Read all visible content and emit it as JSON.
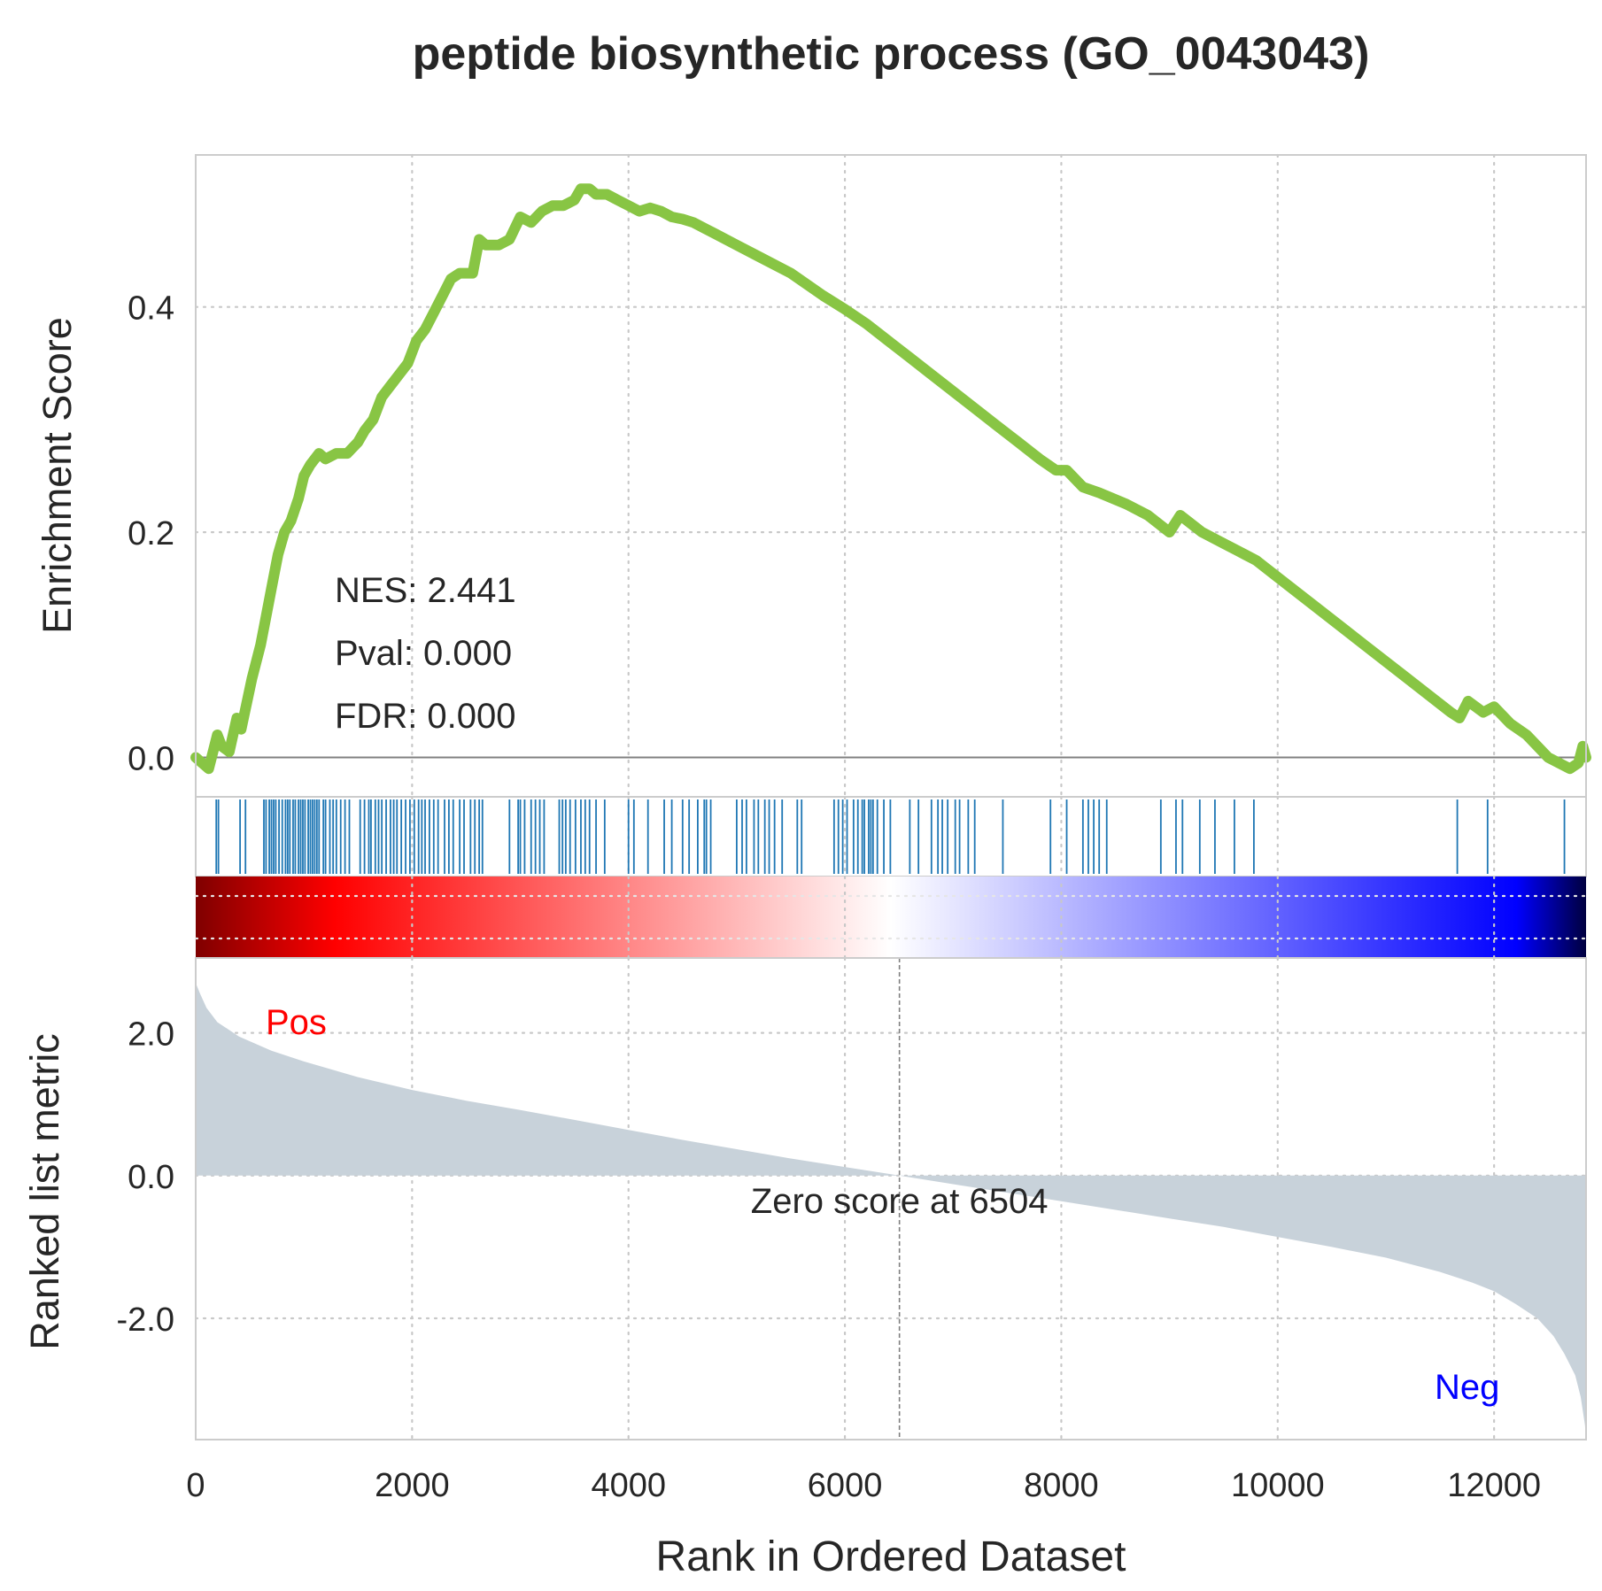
{
  "chart_data": {
    "type": "line",
    "title": "peptide biosynthetic process (GO_0043043)",
    "xlabel": "Rank in Ordered Dataset",
    "xlim": [
      0,
      12850
    ],
    "x_ticks": [
      "0",
      "2000",
      "4000",
      "6000",
      "8000",
      "10000",
      "12000"
    ],
    "grid": true,
    "grid_style": "dotted",
    "colors": {
      "es_line": "#88c544",
      "hits": "#1f77b4",
      "metric_fill": "#c8d2da",
      "pos_label": "#ff0000",
      "neg_label": "#0000ff",
      "gradient": [
        "#7f0000",
        "#ff0000",
        "#ffffff",
        "#0000ff",
        "#00003f"
      ]
    },
    "panels": {
      "enrichment": {
        "ylabel": "Enrichment Score",
        "ylim": [
          -0.035,
          0.535
        ],
        "y_ticks": [
          {
            "v": 0.0,
            "label": "0.0"
          },
          {
            "v": 0.2,
            "label": "0.2"
          },
          {
            "v": 0.4,
            "label": "0.4"
          }
        ],
        "stats": [
          "NES: 2.441",
          "Pval: 0.000",
          "FDR: 0.000"
        ],
        "series": [
          {
            "x": [
              0,
              120,
              200,
              240,
              310,
              380,
              420,
              520,
              600,
              640,
              700,
              760,
              820,
              880,
              950,
              1000,
              1060,
              1140,
              1200,
              1300,
              1400,
              1500,
              1560,
              1640,
              1720,
              1800,
              1880,
              1960,
              2040,
              2120,
              2200,
              2280,
              2360,
              2440,
              2560,
              2620,
              2680,
              2800,
              2900,
              3000,
              3100,
              3200,
              3300,
              3400,
              3500,
              3560,
              3640,
              3700,
              3800,
              3900,
              4000,
              4100,
              4200,
              4300,
              4400,
              4500,
              4600,
              4700,
              4800,
              5000,
              5200,
              5500,
              5800,
              6000,
              6200,
              6400,
              6600,
              6800,
              7000,
              7200,
              7400,
              7600,
              7800,
              7950,
              8050,
              8200,
              8350,
              8600,
              8800,
              9000,
              9100,
              9300,
              9500,
              9700,
              9800,
              10000,
              10400,
              10800,
              11200,
              11600,
              11680,
              11760,
              11900,
              12000,
              12150,
              12300,
              12500,
              12700,
              12780,
              12820,
              12850
            ],
            "y": [
              0.0,
              -0.01,
              0.02,
              0.01,
              0.005,
              0.035,
              0.025,
              0.07,
              0.1,
              0.12,
              0.15,
              0.18,
              0.2,
              0.21,
              0.23,
              0.25,
              0.26,
              0.27,
              0.265,
              0.27,
              0.27,
              0.28,
              0.29,
              0.3,
              0.32,
              0.33,
              0.34,
              0.35,
              0.37,
              0.38,
              0.395,
              0.41,
              0.425,
              0.43,
              0.43,
              0.46,
              0.455,
              0.455,
              0.46,
              0.48,
              0.475,
              0.485,
              0.49,
              0.49,
              0.495,
              0.505,
              0.505,
              0.5,
              0.5,
              0.495,
              0.49,
              0.485,
              0.488,
              0.485,
              0.48,
              0.478,
              0.475,
              0.47,
              0.465,
              0.455,
              0.445,
              0.43,
              0.41,
              0.398,
              0.385,
              0.37,
              0.355,
              0.34,
              0.325,
              0.31,
              0.295,
              0.28,
              0.265,
              0.255,
              0.255,
              0.24,
              0.235,
              0.225,
              0.215,
              0.2,
              0.215,
              0.2,
              0.19,
              0.18,
              0.175,
              0.16,
              0.13,
              0.1,
              0.07,
              0.04,
              0.035,
              0.05,
              0.04,
              0.045,
              0.03,
              0.02,
              0.0,
              -0.01,
              -0.005,
              0.01,
              0.0
            ]
          }
        ]
      },
      "hits": {
        "positions": [
          190,
          210,
          410,
          460,
          630,
          650,
          680,
          700,
          720,
          740,
          770,
          800,
          830,
          850,
          870,
          900,
          920,
          950,
          970,
          990,
          1010,
          1040,
          1060,
          1080,
          1100,
          1120,
          1140,
          1180,
          1200,
          1240,
          1270,
          1300,
          1340,
          1380,
          1420,
          1520,
          1560,
          1600,
          1620,
          1660,
          1690,
          1720,
          1760,
          1800,
          1830,
          1860,
          1900,
          1940,
          1980,
          2020,
          2060,
          2090,
          2120,
          2160,
          2200,
          2240,
          2300,
          2340,
          2380,
          2440,
          2480,
          2540,
          2580,
          2620,
          2650,
          2900,
          2980,
          3000,
          3040,
          3100,
          3140,
          3180,
          3220,
          3360,
          3390,
          3420,
          3460,
          3510,
          3560,
          3600,
          3640,
          3700,
          3780,
          4000,
          4050,
          4180,
          4330,
          4400,
          4500,
          4560,
          4640,
          4700,
          4720,
          4760,
          5000,
          5050,
          5090,
          5160,
          5200,
          5260,
          5300,
          5350,
          5420,
          5560,
          5600,
          5900,
          5940,
          5980,
          6020,
          6080,
          6120,
          6160,
          6180,
          6220,
          6240,
          6260,
          6300,
          6360,
          6420,
          6600,
          6680,
          6800,
          6860,
          6900,
          6950,
          7020,
          7060,
          7140,
          7200,
          7460,
          7900,
          8050,
          8200,
          8250,
          8300,
          8350,
          8420,
          8920,
          9060,
          9120,
          9280,
          9420,
          9600,
          9780,
          11660,
          11940,
          12650
        ]
      },
      "gradient_bar": {
        "stops": [
          0,
          0.1,
          0.5,
          0.95,
          1
        ]
      },
      "metric": {
        "ylabel": "Ranked list metric",
        "ylim": [
          -3.7,
          3.05
        ],
        "y_ticks": [
          {
            "v": 2.0,
            "label": "2.0"
          },
          {
            "v": 0.0,
            "label": "0.0"
          },
          {
            "v": -2.0,
            "label": "-2.0"
          }
        ],
        "zero_cross": 6504,
        "zero_label": "Zero score at 6504",
        "pos_label": "Pos",
        "neg_label": "Neg",
        "series": [
          {
            "x": [
              0,
              40,
              100,
              200,
              400,
              700,
              1000,
              1500,
              2000,
              2500,
              3000,
              3500,
              4000,
              4500,
              5000,
              5500,
              6000,
              6504,
              7000,
              7500,
              8000,
              8500,
              9000,
              9500,
              10000,
              10500,
              11000,
              11500,
              11800,
              12000,
              12200,
              12400,
              12550,
              12650,
              12750,
              12800,
              12840,
              12850
            ],
            "y": [
              2.7,
              2.55,
              2.35,
              2.15,
              1.95,
              1.75,
              1.6,
              1.38,
              1.2,
              1.05,
              0.92,
              0.78,
              0.64,
              0.5,
              0.37,
              0.24,
              0.12,
              0.0,
              -0.12,
              -0.24,
              -0.36,
              -0.48,
              -0.6,
              -0.72,
              -0.86,
              -1.0,
              -1.15,
              -1.35,
              -1.5,
              -1.62,
              -1.8,
              -2.0,
              -2.25,
              -2.5,
              -2.8,
              -3.1,
              -3.5,
              -3.7
            ]
          }
        ]
      }
    }
  }
}
